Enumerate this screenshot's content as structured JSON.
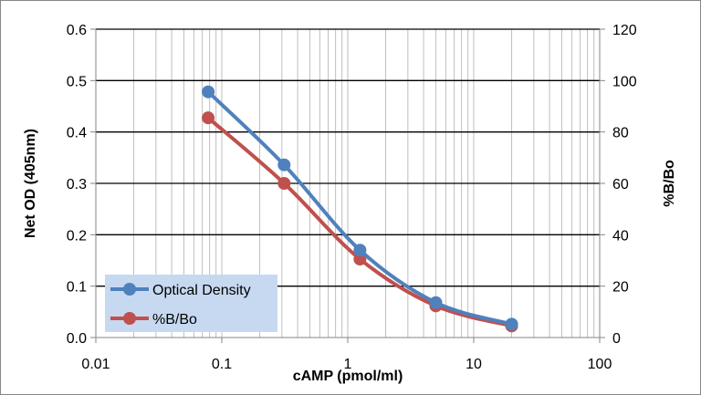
{
  "chart_data": {
    "type": "line",
    "title": "",
    "xlabel": "cAMP (pmol/ml)",
    "ylabel": "Net OD (405nm)",
    "y2label": "%B/Bo",
    "x_scale": "log",
    "xlim": [
      0.01,
      100
    ],
    "ylim": [
      0,
      0.6
    ],
    "y2lim": [
      0,
      120
    ],
    "x_ticks": [
      "0.01",
      "0.1",
      "1",
      "10",
      "100"
    ],
    "y_ticks": [
      "0.0",
      "0.1",
      "0.2",
      "0.3",
      "0.4",
      "0.5",
      "0.6"
    ],
    "y2_ticks": [
      "0",
      "20",
      "40",
      "60",
      "80",
      "100",
      "120"
    ],
    "grid": true,
    "legend_position": "bottom-left",
    "x": [
      0.078,
      0.3125,
      1.25,
      5,
      20
    ],
    "series": [
      {
        "name": "Optical Density",
        "axis": "left",
        "color": "#4f81bd",
        "values": [
          0.478,
          0.336,
          0.17,
          0.068,
          0.026
        ]
      },
      {
        "name": "%B/Bo",
        "axis": "right",
        "color": "#c0504d",
        "values": [
          85.5,
          60,
          30.5,
          12.3,
          4.5
        ]
      }
    ],
    "legend_background": "#c6d9f0"
  }
}
